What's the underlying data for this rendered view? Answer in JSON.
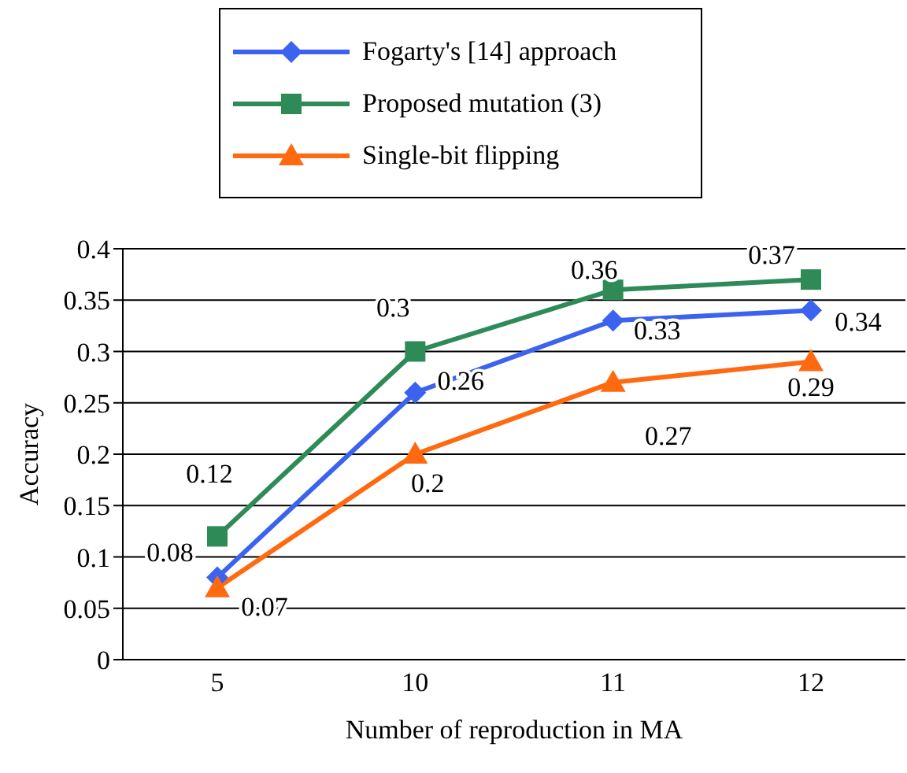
{
  "chart_data": {
    "type": "line",
    "categories": [
      "5",
      "10",
      "11",
      "12"
    ],
    "series": [
      {
        "name": "Fogarty's [14] approach",
        "color": "#3b63f0",
        "marker": "diamond",
        "values": [
          0.08,
          0.26,
          0.33,
          0.34
        ]
      },
      {
        "name": "Proposed mutation (3)",
        "color": "#2e8b57",
        "marker": "square",
        "values": [
          0.12,
          0.3,
          0.36,
          0.37
        ]
      },
      {
        "name": "Single-bit flipping",
        "color": "#ff6a10",
        "marker": "triangle",
        "values": [
          0.07,
          0.2,
          0.27,
          0.29
        ]
      }
    ],
    "xlabel": "Number of reproduction in MA",
    "ylabel": "Accuracy",
    "ylim": [
      0,
      0.4
    ],
    "yticks": [
      0,
      0.05,
      0.1,
      0.15,
      0.2,
      0.25,
      0.3,
      0.35,
      0.4
    ],
    "grid": "y",
    "legend": "top",
    "data_labels": true,
    "line_style": "solid"
  }
}
